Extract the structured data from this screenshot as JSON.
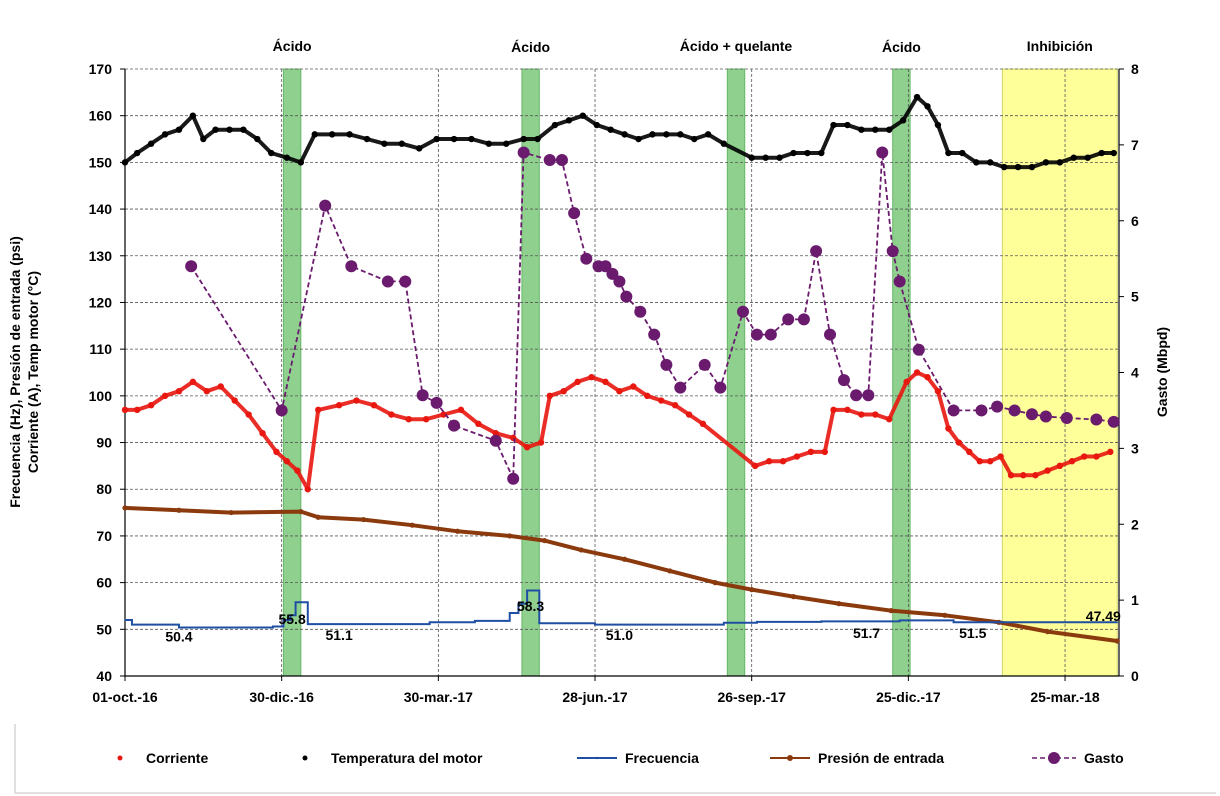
{
  "chart_data": {
    "type": "line",
    "y_left_label_line1": "Frecuencia (Hz), Presión de entrada (psi)",
    "y_left_label_line2": "Corriente (A), Temp motor (°C)",
    "y_right_label": "Gasto (Mbpd)",
    "y_left_lim": [
      40,
      170
    ],
    "y_left_ticks": [
      40,
      50,
      60,
      70,
      80,
      90,
      100,
      110,
      120,
      130,
      140,
      150,
      160,
      170
    ],
    "y_right_lim": [
      0,
      8
    ],
    "y_right_ticks": [
      0,
      1,
      2,
      3,
      4,
      5,
      6,
      7,
      8
    ],
    "x_start": "2016-10-01",
    "x_end": "2018-04-25",
    "x_ticks": [
      {
        "date": "2016-10-01",
        "label": "01-oct.-16"
      },
      {
        "date": "2016-12-30",
        "label": "30-dic.-16"
      },
      {
        "date": "2017-03-30",
        "label": "30-mar.-17"
      },
      {
        "date": "2017-06-28",
        "label": "28-jun.-17"
      },
      {
        "date": "2017-09-26",
        "label": "26-sep.-17"
      },
      {
        "date": "2017-12-25",
        "label": "25-dic.-17"
      },
      {
        "date": "2018-03-25",
        "label": "25-mar.-18"
      }
    ],
    "grid": true,
    "legend_position": "bottom",
    "treatments": [
      {
        "label": "Ácido",
        "start": "2016-12-31",
        "end": "2017-01-10",
        "color": "#7cc87c"
      },
      {
        "label": "Ácido",
        "start": "2017-05-17",
        "end": "2017-05-27",
        "color": "#7cc87c"
      },
      {
        "label": "Ácido + quelante",
        "start": "2017-09-12",
        "end": "2017-09-22",
        "color": "#7cc87c"
      },
      {
        "label": "Ácido",
        "start": "2017-12-16",
        "end": "2017-12-26",
        "color": "#7cc87c"
      },
      {
        "label": "Inhibición",
        "start": "2018-02-17",
        "end": "2018-04-24",
        "color": "#ffff88"
      }
    ],
    "value_labels": [
      {
        "date": "2016-11-01",
        "y": 48.5,
        "text": "50.4"
      },
      {
        "date": "2017-01-05",
        "y": 52.2,
        "text": "55.8"
      },
      {
        "date": "2017-02-01",
        "y": 48.8,
        "text": "51.1"
      },
      {
        "date": "2017-05-22",
        "y": 55.0,
        "text": "58.3"
      },
      {
        "date": "2017-07-12",
        "y": 48.8,
        "text": "51.0"
      },
      {
        "date": "2017-12-01",
        "y": 49.2,
        "text": "51.7"
      },
      {
        "date": "2018-01-31",
        "y": 49.2,
        "text": "51.5"
      },
      {
        "date": "2018-04-16",
        "y": 52.8,
        "text": "47.49"
      }
    ],
    "series": [
      {
        "name": "Corriente",
        "axis": "left",
        "style": "markers",
        "color": "#e8170f",
        "points": [
          [
            "2016-10-01",
            97
          ],
          [
            "2016-10-08",
            97
          ],
          [
            "2016-10-16",
            98
          ],
          [
            "2016-10-24",
            100
          ],
          [
            "2016-11-01",
            101
          ],
          [
            "2016-11-09",
            103
          ],
          [
            "2016-11-17",
            101
          ],
          [
            "2016-11-25",
            102
          ],
          [
            "2016-12-03",
            99
          ],
          [
            "2016-12-11",
            96
          ],
          [
            "2016-12-19",
            92
          ],
          [
            "2016-12-27",
            88
          ],
          [
            "2017-01-02",
            86
          ],
          [
            "2017-01-08",
            84
          ],
          [
            "2017-01-14",
            80
          ],
          [
            "2017-01-20",
            97
          ],
          [
            "2017-02-01",
            98
          ],
          [
            "2017-02-11",
            99
          ],
          [
            "2017-02-21",
            98
          ],
          [
            "2017-03-03",
            96
          ],
          [
            "2017-03-13",
            95
          ],
          [
            "2017-03-23",
            95
          ],
          [
            "2017-04-02",
            96
          ],
          [
            "2017-04-12",
            97
          ],
          [
            "2017-04-22",
            94
          ],
          [
            "2017-05-02",
            92
          ],
          [
            "2017-05-12",
            91
          ],
          [
            "2017-05-20",
            89
          ],
          [
            "2017-05-28",
            90
          ],
          [
            "2017-06-02",
            100
          ],
          [
            "2017-06-10",
            101
          ],
          [
            "2017-06-18",
            103
          ],
          [
            "2017-06-26",
            104
          ],
          [
            "2017-07-04",
            103
          ],
          [
            "2017-07-12",
            101
          ],
          [
            "2017-07-20",
            102
          ],
          [
            "2017-07-28",
            100
          ],
          [
            "2017-08-05",
            99
          ],
          [
            "2017-08-13",
            98
          ],
          [
            "2017-08-21",
            96
          ],
          [
            "2017-08-29",
            94
          ],
          [
            "2017-09-28",
            85
          ],
          [
            "2017-10-06",
            86
          ],
          [
            "2017-10-14",
            86
          ],
          [
            "2017-10-22",
            87
          ],
          [
            "2017-10-30",
            88
          ],
          [
            "2017-11-07",
            88
          ],
          [
            "2017-11-12",
            97
          ],
          [
            "2017-11-20",
            97
          ],
          [
            "2017-11-28",
            96
          ],
          [
            "2017-12-06",
            96
          ],
          [
            "2017-12-14",
            95
          ],
          [
            "2017-12-24",
            103
          ],
          [
            "2017-12-30",
            105
          ],
          [
            "2018-01-05",
            104
          ],
          [
            "2018-01-11",
            101
          ],
          [
            "2018-01-17",
            93
          ],
          [
            "2018-01-23",
            90
          ],
          [
            "2018-01-29",
            88
          ],
          [
            "2018-02-04",
            86
          ],
          [
            "2018-02-10",
            86
          ],
          [
            "2018-02-16",
            87
          ],
          [
            "2018-02-22",
            83
          ],
          [
            "2018-03-01",
            83
          ],
          [
            "2018-03-08",
            83
          ],
          [
            "2018-03-15",
            84
          ],
          [
            "2018-03-22",
            85
          ],
          [
            "2018-03-29",
            86
          ],
          [
            "2018-04-05",
            87
          ],
          [
            "2018-04-12",
            87
          ],
          [
            "2018-04-20",
            88
          ]
        ]
      },
      {
        "name": "Temperatura del motor",
        "axis": "left",
        "style": "markers",
        "color": "#000000",
        "points": [
          [
            "2016-10-01",
            150
          ],
          [
            "2016-10-08",
            152
          ],
          [
            "2016-10-16",
            154
          ],
          [
            "2016-10-24",
            156
          ],
          [
            "2016-11-01",
            157
          ],
          [
            "2016-11-09",
            160
          ],
          [
            "2016-11-15",
            155
          ],
          [
            "2016-11-22",
            157
          ],
          [
            "2016-11-30",
            157
          ],
          [
            "2016-12-08",
            157
          ],
          [
            "2016-12-16",
            155
          ],
          [
            "2016-12-24",
            152
          ],
          [
            "2017-01-02",
            151
          ],
          [
            "2017-01-10",
            150
          ],
          [
            "2017-01-18",
            156
          ],
          [
            "2017-01-28",
            156
          ],
          [
            "2017-02-07",
            156
          ],
          [
            "2017-02-17",
            155
          ],
          [
            "2017-02-27",
            154
          ],
          [
            "2017-03-09",
            154
          ],
          [
            "2017-03-19",
            153
          ],
          [
            "2017-03-29",
            155
          ],
          [
            "2017-04-08",
            155
          ],
          [
            "2017-04-18",
            155
          ],
          [
            "2017-04-28",
            154
          ],
          [
            "2017-05-08",
            154
          ],
          [
            "2017-05-18",
            155
          ],
          [
            "2017-05-26",
            155
          ],
          [
            "2017-06-05",
            158
          ],
          [
            "2017-06-13",
            159
          ],
          [
            "2017-06-21",
            160
          ],
          [
            "2017-06-29",
            158
          ],
          [
            "2017-07-07",
            157
          ],
          [
            "2017-07-15",
            156
          ],
          [
            "2017-07-23",
            155
          ],
          [
            "2017-07-31",
            156
          ],
          [
            "2017-08-08",
            156
          ],
          [
            "2017-08-16",
            156
          ],
          [
            "2017-08-24",
            155
          ],
          [
            "2017-09-01",
            156
          ],
          [
            "2017-09-10",
            154
          ],
          [
            "2017-09-26",
            151
          ],
          [
            "2017-10-04",
            151
          ],
          [
            "2017-10-12",
            151
          ],
          [
            "2017-10-20",
            152
          ],
          [
            "2017-10-28",
            152
          ],
          [
            "2017-11-05",
            152
          ],
          [
            "2017-11-12",
            158
          ],
          [
            "2017-11-20",
            158
          ],
          [
            "2017-11-28",
            157
          ],
          [
            "2017-12-06",
            157
          ],
          [
            "2017-12-14",
            157
          ],
          [
            "2017-12-22",
            159
          ],
          [
            "2017-12-30",
            164
          ],
          [
            "2018-01-05",
            162
          ],
          [
            "2018-01-11",
            158
          ],
          [
            "2018-01-17",
            152
          ],
          [
            "2018-01-25",
            152
          ],
          [
            "2018-02-02",
            150
          ],
          [
            "2018-02-10",
            150
          ],
          [
            "2018-02-18",
            149
          ],
          [
            "2018-02-26",
            149
          ],
          [
            "2018-03-06",
            149
          ],
          [
            "2018-03-14",
            150
          ],
          [
            "2018-03-22",
            150
          ],
          [
            "2018-03-30",
            151
          ],
          [
            "2018-04-07",
            151
          ],
          [
            "2018-04-15",
            152
          ],
          [
            "2018-04-22",
            152
          ]
        ]
      },
      {
        "name": "Frecuencia",
        "axis": "left",
        "style": "step",
        "color": "#1f4fa3",
        "points": [
          [
            "2016-10-01",
            52
          ],
          [
            "2016-10-05",
            51
          ],
          [
            "2016-11-01",
            50.4
          ],
          [
            "2016-12-25",
            50.6
          ],
          [
            "2016-12-31",
            52
          ],
          [
            "2017-01-04",
            53
          ],
          [
            "2017-01-07",
            55.8
          ],
          [
            "2017-01-14",
            51.1
          ],
          [
            "2017-03-25",
            51.5
          ],
          [
            "2017-04-20",
            51.8
          ],
          [
            "2017-05-10",
            53.5
          ],
          [
            "2017-05-15",
            55.5
          ],
          [
            "2017-05-20",
            58.3
          ],
          [
            "2017-05-27",
            51.3
          ],
          [
            "2017-06-28",
            51
          ],
          [
            "2017-09-10",
            51.4
          ],
          [
            "2017-09-29",
            51.6
          ],
          [
            "2017-11-05",
            51.7
          ],
          [
            "2017-12-20",
            51.9
          ],
          [
            "2018-01-20",
            51.5
          ],
          [
            "2018-04-24",
            51.5
          ]
        ]
      },
      {
        "name": "Presión de entrada",
        "axis": "left",
        "style": "line",
        "color": "#8b3a0e",
        "points": [
          [
            "2016-10-01",
            76
          ],
          [
            "2016-11-01",
            75.5
          ],
          [
            "2016-12-01",
            75
          ],
          [
            "2017-01-10",
            75.2
          ],
          [
            "2017-01-20",
            74
          ],
          [
            "2017-02-15",
            73.5
          ],
          [
            "2017-03-15",
            72.3
          ],
          [
            "2017-04-10",
            71
          ],
          [
            "2017-05-10",
            70
          ],
          [
            "2017-05-30",
            69
          ],
          [
            "2017-06-20",
            67
          ],
          [
            "2017-07-15",
            65
          ],
          [
            "2017-08-10",
            62.5
          ],
          [
            "2017-09-05",
            60
          ],
          [
            "2017-09-26",
            58.5
          ],
          [
            "2017-10-20",
            57
          ],
          [
            "2017-11-15",
            55.5
          ],
          [
            "2017-12-15",
            54
          ],
          [
            "2018-01-15",
            53
          ],
          [
            "2018-02-15",
            51.5
          ],
          [
            "2018-03-15",
            49.5
          ],
          [
            "2018-04-24",
            47.5
          ]
        ]
      },
      {
        "name": "Gasto",
        "axis": "right",
        "style": "dashed-markers",
        "color": "#6a1b6e",
        "points": [
          [
            "2016-11-08",
            5.4
          ],
          [
            "2016-12-30",
            3.5
          ],
          [
            "2017-01-24",
            6.2
          ],
          [
            "2017-02-08",
            5.4
          ],
          [
            "2017-03-01",
            5.2
          ],
          [
            "2017-03-11",
            5.2
          ],
          [
            "2017-03-21",
            3.7
          ],
          [
            "2017-03-29",
            3.6
          ],
          [
            "2017-04-08",
            3.3
          ],
          [
            "2017-05-02",
            3.1
          ],
          [
            "2017-05-12",
            2.6
          ],
          [
            "2017-05-18",
            6.9
          ],
          [
            "2017-06-02",
            6.8
          ],
          [
            "2017-06-09",
            6.8
          ],
          [
            "2017-06-16",
            6.1
          ],
          [
            "2017-06-23",
            5.5
          ],
          [
            "2017-06-30",
            5.4
          ],
          [
            "2017-07-04",
            5.4
          ],
          [
            "2017-07-08",
            5.3
          ],
          [
            "2017-07-12",
            5.2
          ],
          [
            "2017-07-16",
            5.0
          ],
          [
            "2017-07-24",
            4.8
          ],
          [
            "2017-08-01",
            4.5
          ],
          [
            "2017-08-08",
            4.1
          ],
          [
            "2017-08-16",
            3.8
          ],
          [
            "2017-08-30",
            4.1
          ],
          [
            "2017-09-08",
            3.8
          ],
          [
            "2017-09-21",
            4.8
          ],
          [
            "2017-09-29",
            4.5
          ],
          [
            "2017-10-07",
            4.5
          ],
          [
            "2017-10-17",
            4.7
          ],
          [
            "2017-10-26",
            4.7
          ],
          [
            "2017-11-02",
            5.6
          ],
          [
            "2017-11-10",
            4.5
          ],
          [
            "2017-11-18",
            3.9
          ],
          [
            "2017-11-25",
            3.7
          ],
          [
            "2017-12-02",
            3.7
          ],
          [
            "2017-12-10",
            6.9
          ],
          [
            "2017-12-16",
            5.6
          ],
          [
            "2017-12-20",
            5.2
          ],
          [
            "2017-12-31",
            4.3
          ],
          [
            "2018-01-20",
            3.5
          ],
          [
            "2018-02-05",
            3.5
          ],
          [
            "2018-02-14",
            3.55
          ],
          [
            "2018-02-24",
            3.5
          ],
          [
            "2018-03-06",
            3.45
          ],
          [
            "2018-03-14",
            3.42
          ],
          [
            "2018-03-26",
            3.4
          ],
          [
            "2018-04-12",
            3.38
          ],
          [
            "2018-04-22",
            3.35
          ]
        ]
      }
    ],
    "legend": [
      {
        "label": "Corriente",
        "style": "marker",
        "color": "#e8170f"
      },
      {
        "label": "Temperatura del motor",
        "style": "marker",
        "color": "#000000"
      },
      {
        "label": "Frecuencia",
        "style": "line",
        "color": "#1f4fa3"
      },
      {
        "label": "Presión de entrada",
        "style": "line-marker",
        "color": "#8b3a0e"
      },
      {
        "label": "Gasto",
        "style": "dashed-marker",
        "color": "#6a1b6e"
      }
    ]
  }
}
